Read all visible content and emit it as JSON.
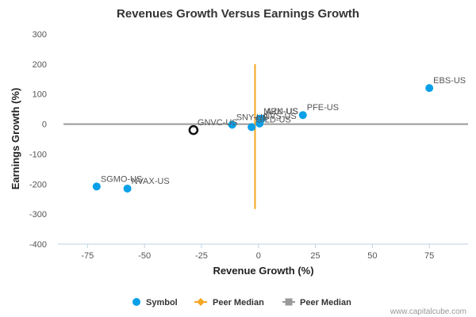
{
  "chart_data": {
    "type": "scatter",
    "title": "Revenues Growth Versus Earnings Growth",
    "xlabel": "Revenue Growth (%)",
    "ylabel": "Earnings Growth (%)",
    "xlim": [
      -88,
      92
    ],
    "ylim": [
      -400,
      300
    ],
    "xticks": [
      -75,
      -50,
      -25,
      0,
      25,
      50,
      75
    ],
    "xtick_labels": [
      "-75",
      "-50",
      "-25",
      "0",
      "25",
      "50",
      "75"
    ],
    "yticks": [
      300,
      200,
      100,
      0,
      -100,
      -200,
      -300,
      -400
    ],
    "ytick_labels": [
      "300",
      "200",
      "100",
      "0",
      "-100",
      "-200",
      "-300",
      "-400"
    ],
    "grid": false,
    "subject": {
      "label": "GNVC-US",
      "x": -28.5,
      "y": -20
    },
    "series": [
      {
        "name": "Symbol",
        "color": "#0aa0e8",
        "points": [
          {
            "label": "EBS-US",
            "x": 75,
            "y": 120
          },
          {
            "label": "PFE-US",
            "x": 19.5,
            "y": 30
          },
          {
            "label": "MRK-US",
            "x": 0.5,
            "y": 18
          },
          {
            "label": "AZN-US",
            "x": 1.5,
            "y": 18
          },
          {
            "label": "NVS-US",
            "x": 0.5,
            "y": 2
          },
          {
            "label": "GILD-US",
            "x": -3,
            "y": -10
          },
          {
            "label": "SNY-US",
            "x": -11.5,
            "y": -2
          },
          {
            "label": "SGMO-US",
            "x": -71,
            "y": -208
          },
          {
            "label": "NVAX-US",
            "x": -57.5,
            "y": -215
          }
        ]
      }
    ],
    "peer_median_vertical": {
      "name": "Peer Median",
      "color": "#f5a623",
      "x": -1.5,
      "y_from": -283,
      "y_to": 200
    },
    "peer_median_horizontal": {
      "name": "Peer Median",
      "color": "#999999",
      "y": 0
    },
    "legend": [
      "Symbol",
      "Peer Median",
      "Peer Median"
    ],
    "legend_position": "bottom-center"
  },
  "credit": "www.capitalcube.com"
}
